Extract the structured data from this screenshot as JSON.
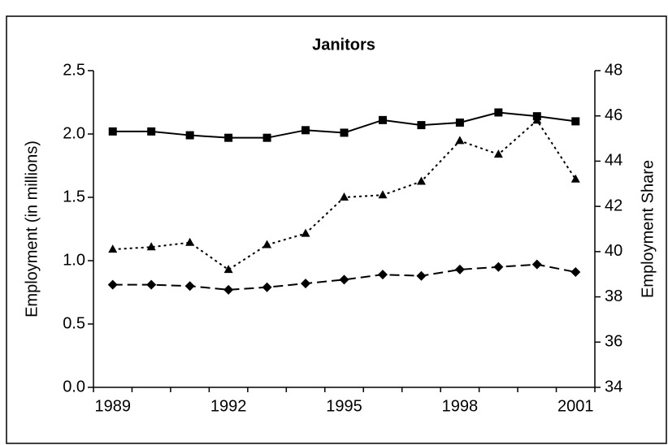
{
  "chart_data": {
    "type": "line",
    "title": "Janitors",
    "y_label": "Employment (in millions)",
    "y2_label": "Employment Share",
    "categories": [
      "1989",
      null,
      null,
      "1992",
      null,
      null,
      "1995",
      null,
      null,
      "1998",
      null,
      null,
      "2001"
    ],
    "ylim": [
      0,
      2.5
    ],
    "yticks": [
      {
        "value": 0,
        "label": "0.0"
      },
      0.5,
      {
        "value": 1,
        "label": "1.0"
      },
      1.5,
      {
        "value": 2,
        "label": "2.0"
      },
      2.5
    ],
    "y2lim": [
      34,
      48
    ],
    "y2ticks": [
      34,
      36,
      38,
      40,
      42,
      44,
      46,
      48
    ],
    "series": [
      {
        "color": "#000000",
        "dash": "solid",
        "marker": "square",
        "values": [
          2.02,
          2.02,
          1.99,
          1.97,
          1.97,
          2.03,
          2.01,
          2.11,
          2.07,
          2.09,
          2.17,
          2.14,
          2.1
        ]
      },
      {
        "color": "#000000",
        "dash": "dashed",
        "marker": "diamond",
        "values": [
          0.81,
          0.81,
          0.8,
          0.77,
          0.79,
          0.82,
          0.85,
          0.89,
          0.88,
          0.93,
          0.95,
          0.97,
          0.91
        ]
      },
      {
        "color": "#000000",
        "dash": "dotted",
        "marker": "triangle",
        "axis": "y2",
        "values": [
          40.1,
          40.2,
          40.4,
          39.2,
          40.3,
          40.8,
          42.4,
          42.5,
          43.1,
          44.9,
          44.3,
          45.8,
          43.2
        ]
      }
    ]
  }
}
